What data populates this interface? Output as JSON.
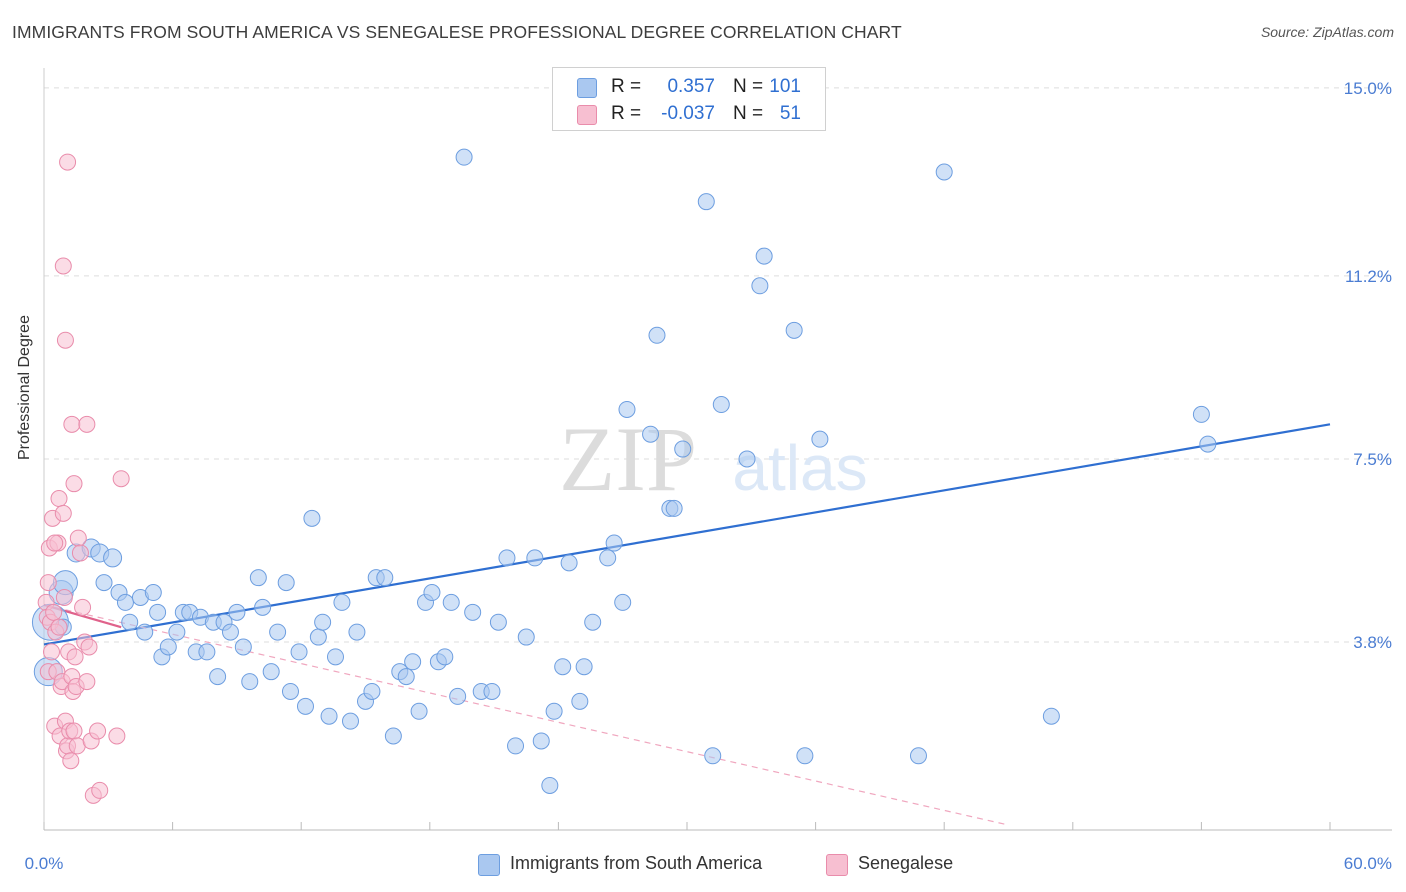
{
  "title": "IMMIGRANTS FROM SOUTH AMERICA VS SENEGALESE PROFESSIONAL DEGREE CORRELATION CHART",
  "source": "Source: ZipAtlas.com",
  "watermark": {
    "zip": "ZIP",
    "atlas": "atlas"
  },
  "legend_top": {
    "rows": [
      {
        "r_label": "R =",
        "r_value": "0.357",
        "n_label": "N =",
        "n_value": "101",
        "color": "#aac8f0",
        "border": "#6d9ee0"
      },
      {
        "r_label": "R =",
        "r_value": "-0.037",
        "n_label": "N =",
        "n_value": "51",
        "color": "#f7bfd1",
        "border": "#e98cab"
      }
    ]
  },
  "legend_bottom": [
    {
      "label": "Immigrants from South America",
      "color": "#aac8f0",
      "border": "#6d9ee0"
    },
    {
      "label": "Senegalese",
      "color": "#f7bfd1",
      "border": "#e98cab"
    }
  ],
  "chart_data": {
    "type": "scatter",
    "title": "IMMIGRANTS FROM SOUTH AMERICA VS SENEGALESE PROFESSIONAL DEGREE CORRELATION CHART",
    "xlabel": "",
    "ylabel": "Professional Degree",
    "xlim": [
      0,
      60
    ],
    "ylim": [
      0,
      15.2
    ],
    "x_tick_labels": [
      "0.0%",
      "60.0%"
    ],
    "y_ticks": [
      3.8,
      7.5,
      11.2,
      15.0
    ],
    "y_tick_labels": [
      "3.8%",
      "7.5%",
      "11.2%",
      "15.0%"
    ],
    "grid": true,
    "legend_position": "top-center",
    "series": [
      {
        "name": "Immigrants from South America",
        "color": "#aac8f0",
        "stroke": "#6d9ee0",
        "trend": {
          "x": [
            0,
            60
          ],
          "y": [
            3.75,
            8.2
          ],
          "color": "#2f6fd1",
          "style": "solid"
        },
        "points": [
          [
            0.2,
            3.2,
            14
          ],
          [
            0.3,
            4.2,
            18
          ],
          [
            0.8,
            4.8,
            12
          ],
          [
            1.0,
            5.0,
            12
          ],
          [
            1.5,
            5.6,
            9
          ],
          [
            2.2,
            5.7,
            9
          ],
          [
            2.6,
            5.6,
            9
          ],
          [
            3.2,
            5.5,
            9
          ],
          [
            2.8,
            5.0,
            8
          ],
          [
            3.5,
            4.8,
            8
          ],
          [
            3.8,
            4.6,
            8
          ],
          [
            4.0,
            4.2,
            8
          ],
          [
            4.5,
            4.7,
            8
          ],
          [
            4.7,
            4.0,
            8
          ],
          [
            5.1,
            4.8,
            8
          ],
          [
            5.3,
            4.4,
            8
          ],
          [
            5.5,
            3.5,
            8
          ],
          [
            5.8,
            3.7,
            8
          ],
          [
            6.2,
            4.0,
            8
          ],
          [
            6.5,
            4.4,
            8
          ],
          [
            6.8,
            4.4,
            8
          ],
          [
            7.1,
            3.6,
            8
          ],
          [
            7.3,
            4.3,
            8
          ],
          [
            7.6,
            3.6,
            8
          ],
          [
            7.9,
            4.2,
            8
          ],
          [
            8.1,
            3.1,
            8
          ],
          [
            8.4,
            4.2,
            8
          ],
          [
            8.7,
            4.0,
            8
          ],
          [
            9.0,
            4.4,
            8
          ],
          [
            9.3,
            3.7,
            8
          ],
          [
            9.6,
            3.0,
            8
          ],
          [
            10.0,
            5.1,
            8
          ],
          [
            10.2,
            4.5,
            8
          ],
          [
            10.6,
            3.2,
            8
          ],
          [
            10.9,
            4.0,
            8
          ],
          [
            11.3,
            5.0,
            8
          ],
          [
            11.5,
            2.8,
            8
          ],
          [
            11.9,
            3.6,
            8
          ],
          [
            12.2,
            2.5,
            8
          ],
          [
            12.5,
            6.3,
            8
          ],
          [
            12.8,
            3.9,
            8
          ],
          [
            13.0,
            4.2,
            8
          ],
          [
            13.3,
            2.3,
            8
          ],
          [
            13.6,
            3.5,
            8
          ],
          [
            13.9,
            4.6,
            8
          ],
          [
            14.3,
            2.2,
            8
          ],
          [
            14.6,
            4.0,
            8
          ],
          [
            15.0,
            2.6,
            8
          ],
          [
            15.3,
            2.8,
            8
          ],
          [
            15.5,
            5.1,
            8
          ],
          [
            15.9,
            5.1,
            8
          ],
          [
            16.3,
            1.9,
            8
          ],
          [
            16.6,
            3.2,
            8
          ],
          [
            16.9,
            3.1,
            8
          ],
          [
            17.2,
            3.4,
            8
          ],
          [
            17.5,
            2.4,
            8
          ],
          [
            17.8,
            4.6,
            8
          ],
          [
            18.1,
            4.8,
            8
          ],
          [
            18.4,
            3.4,
            8
          ],
          [
            18.7,
            3.5,
            8
          ],
          [
            19.0,
            4.6,
            8
          ],
          [
            19.3,
            2.7,
            8
          ],
          [
            19.6,
            13.6,
            8
          ],
          [
            20.0,
            4.4,
            8
          ],
          [
            20.4,
            2.8,
            8
          ],
          [
            20.9,
            2.8,
            8
          ],
          [
            21.2,
            4.2,
            8
          ],
          [
            21.6,
            5.5,
            8
          ],
          [
            22.0,
            1.7,
            8
          ],
          [
            22.5,
            3.9,
            8
          ],
          [
            22.9,
            5.5,
            8
          ],
          [
            23.2,
            1.8,
            8
          ],
          [
            23.6,
            0.9,
            8
          ],
          [
            23.8,
            2.4,
            8
          ],
          [
            24.2,
            3.3,
            8
          ],
          [
            24.5,
            5.4,
            8
          ],
          [
            25.0,
            2.6,
            8
          ],
          [
            25.2,
            3.3,
            8
          ],
          [
            25.6,
            4.2,
            8
          ],
          [
            26.3,
            5.5,
            8
          ],
          [
            26.6,
            5.8,
            8
          ],
          [
            27.0,
            4.6,
            8
          ],
          [
            27.2,
            8.5,
            8
          ],
          [
            28.3,
            8.0,
            8
          ],
          [
            28.6,
            10.0,
            8
          ],
          [
            29.2,
            6.5,
            8
          ],
          [
            29.4,
            6.5,
            8
          ],
          [
            29.8,
            7.7,
            8
          ],
          [
            30.9,
            12.7,
            8
          ],
          [
            31.2,
            1.5,
            8
          ],
          [
            31.6,
            8.6,
            8
          ],
          [
            32.8,
            7.5,
            8
          ],
          [
            33.4,
            11.0,
            8
          ],
          [
            33.6,
            11.6,
            8
          ],
          [
            35.0,
            10.1,
            8
          ],
          [
            35.5,
            1.5,
            8
          ],
          [
            36.2,
            7.9,
            8
          ],
          [
            40.8,
            1.5,
            8
          ],
          [
            42.0,
            13.3,
            8
          ],
          [
            47.0,
            2.3,
            8
          ],
          [
            54.0,
            8.4,
            8
          ],
          [
            54.3,
            7.8,
            8
          ],
          [
            0.9,
            4.1,
            8
          ]
        ]
      },
      {
        "name": "Senegalese",
        "color": "#f7bfd1",
        "stroke": "#e98cab",
        "trend": {
          "x": [
            0,
            3.6
          ],
          "y": [
            4.55,
            4.1
          ],
          "color": "#e0628b",
          "style": "solid"
        },
        "trend_extended": {
          "x": [
            0,
            45
          ],
          "y": [
            4.55,
            0.1
          ],
          "color": "#f0a7bf",
          "style": "dashed"
        },
        "points": [
          [
            0.1,
            4.6,
            8
          ],
          [
            0.15,
            4.3,
            8
          ],
          [
            0.2,
            5.0,
            8
          ],
          [
            0.2,
            3.2,
            8
          ],
          [
            0.25,
            5.7,
            8
          ],
          [
            0.3,
            4.2,
            8
          ],
          [
            0.35,
            3.6,
            8
          ],
          [
            0.4,
            6.3,
            8
          ],
          [
            0.45,
            4.4,
            8
          ],
          [
            0.5,
            2.1,
            8
          ],
          [
            0.55,
            4.0,
            8
          ],
          [
            0.6,
            3.2,
            8
          ],
          [
            0.65,
            5.8,
            8
          ],
          [
            0.7,
            6.7,
            8
          ],
          [
            0.75,
            1.9,
            8
          ],
          [
            0.8,
            2.9,
            8
          ],
          [
            0.85,
            3.0,
            8
          ],
          [
            0.9,
            6.4,
            8
          ],
          [
            0.95,
            4.7,
            8
          ],
          [
            1.0,
            2.2,
            8
          ],
          [
            1.05,
            1.6,
            8
          ],
          [
            1.1,
            1.7,
            8
          ],
          [
            1.15,
            3.6,
            8
          ],
          [
            1.2,
            2.0,
            8
          ],
          [
            1.25,
            1.4,
            8
          ],
          [
            1.3,
            3.1,
            8
          ],
          [
            1.35,
            2.8,
            8
          ],
          [
            1.4,
            2.0,
            8
          ],
          [
            1.45,
            3.5,
            8
          ],
          [
            1.5,
            2.9,
            8
          ],
          [
            1.55,
            1.7,
            8
          ],
          [
            1.6,
            5.9,
            8
          ],
          [
            1.7,
            5.6,
            8
          ],
          [
            1.8,
            4.5,
            8
          ],
          [
            1.9,
            3.8,
            8
          ],
          [
            2.0,
            3.0,
            8
          ],
          [
            2.1,
            3.7,
            8
          ],
          [
            2.2,
            1.8,
            8
          ],
          [
            2.3,
            0.7,
            8
          ],
          [
            2.6,
            0.8,
            8
          ],
          [
            0.9,
            11.4,
            8
          ],
          [
            1.0,
            9.9,
            8
          ],
          [
            1.1,
            13.5,
            8
          ],
          [
            1.3,
            8.2,
            8
          ],
          [
            1.4,
            7.0,
            8
          ],
          [
            2.0,
            8.2,
            8
          ],
          [
            2.5,
            2.0,
            8
          ],
          [
            3.4,
            1.9,
            8
          ],
          [
            3.6,
            7.1,
            8
          ],
          [
            0.5,
            5.8,
            8
          ],
          [
            0.7,
            4.1,
            8
          ]
        ]
      }
    ]
  }
}
